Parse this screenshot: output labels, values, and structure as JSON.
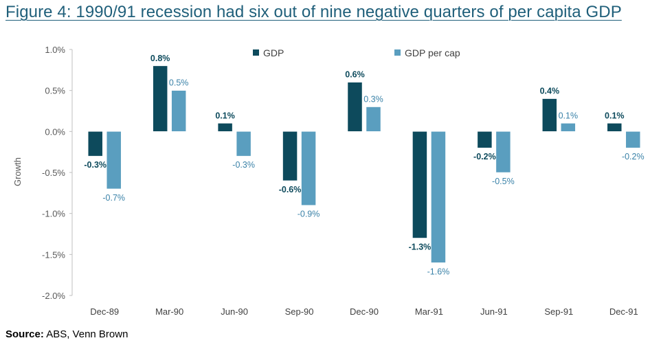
{
  "chart_data": {
    "type": "bar",
    "title": "Figure 4: 1990/91 recession had six out of nine negative quarters of per capita GDP",
    "ylabel": "Growth",
    "xlabel": "",
    "categories": [
      "Dec-89",
      "Mar-90",
      "Jun-90",
      "Sep-90",
      "Dec-90",
      "Mar-91",
      "Jun-91",
      "Sep-91",
      "Dec-91"
    ],
    "series": [
      {
        "name": "GDP",
        "values": [
          -0.3,
          0.8,
          0.1,
          -0.6,
          0.6,
          -1.3,
          -0.2,
          0.4,
          0.1
        ],
        "color": "#0d4a5c",
        "labels": [
          "-0.3%",
          "0.8%",
          "0.1%",
          "-0.6%",
          "0.6%",
          "-1.3%",
          "-0.2%",
          "0.4%",
          "0.1%"
        ]
      },
      {
        "name": "GDP per cap",
        "values": [
          -0.7,
          0.5,
          -0.3,
          -0.9,
          0.3,
          -1.6,
          -0.5,
          0.1,
          -0.2
        ],
        "color": "#5a9ebf",
        "labels": [
          "-0.7%",
          "0.5%",
          "-0.3%",
          "-0.9%",
          "0.3%",
          "-1.6%",
          "-0.5%",
          "0.1%",
          "-0.2%"
        ]
      }
    ],
    "ylim": [
      -2.0,
      1.0
    ],
    "yticks": [
      1.0,
      0.5,
      0.0,
      -0.5,
      -1.0,
      -1.5,
      -2.0
    ],
    "ytick_labels": [
      "1.0%",
      "0.5%",
      "0.0%",
      "-0.5%",
      "-1.0%",
      "-1.5%",
      "-2.0%"
    ],
    "legend_position": "top-center",
    "grid": false
  },
  "source": {
    "label": "Source:",
    "text": " ABS, Venn Brown"
  }
}
